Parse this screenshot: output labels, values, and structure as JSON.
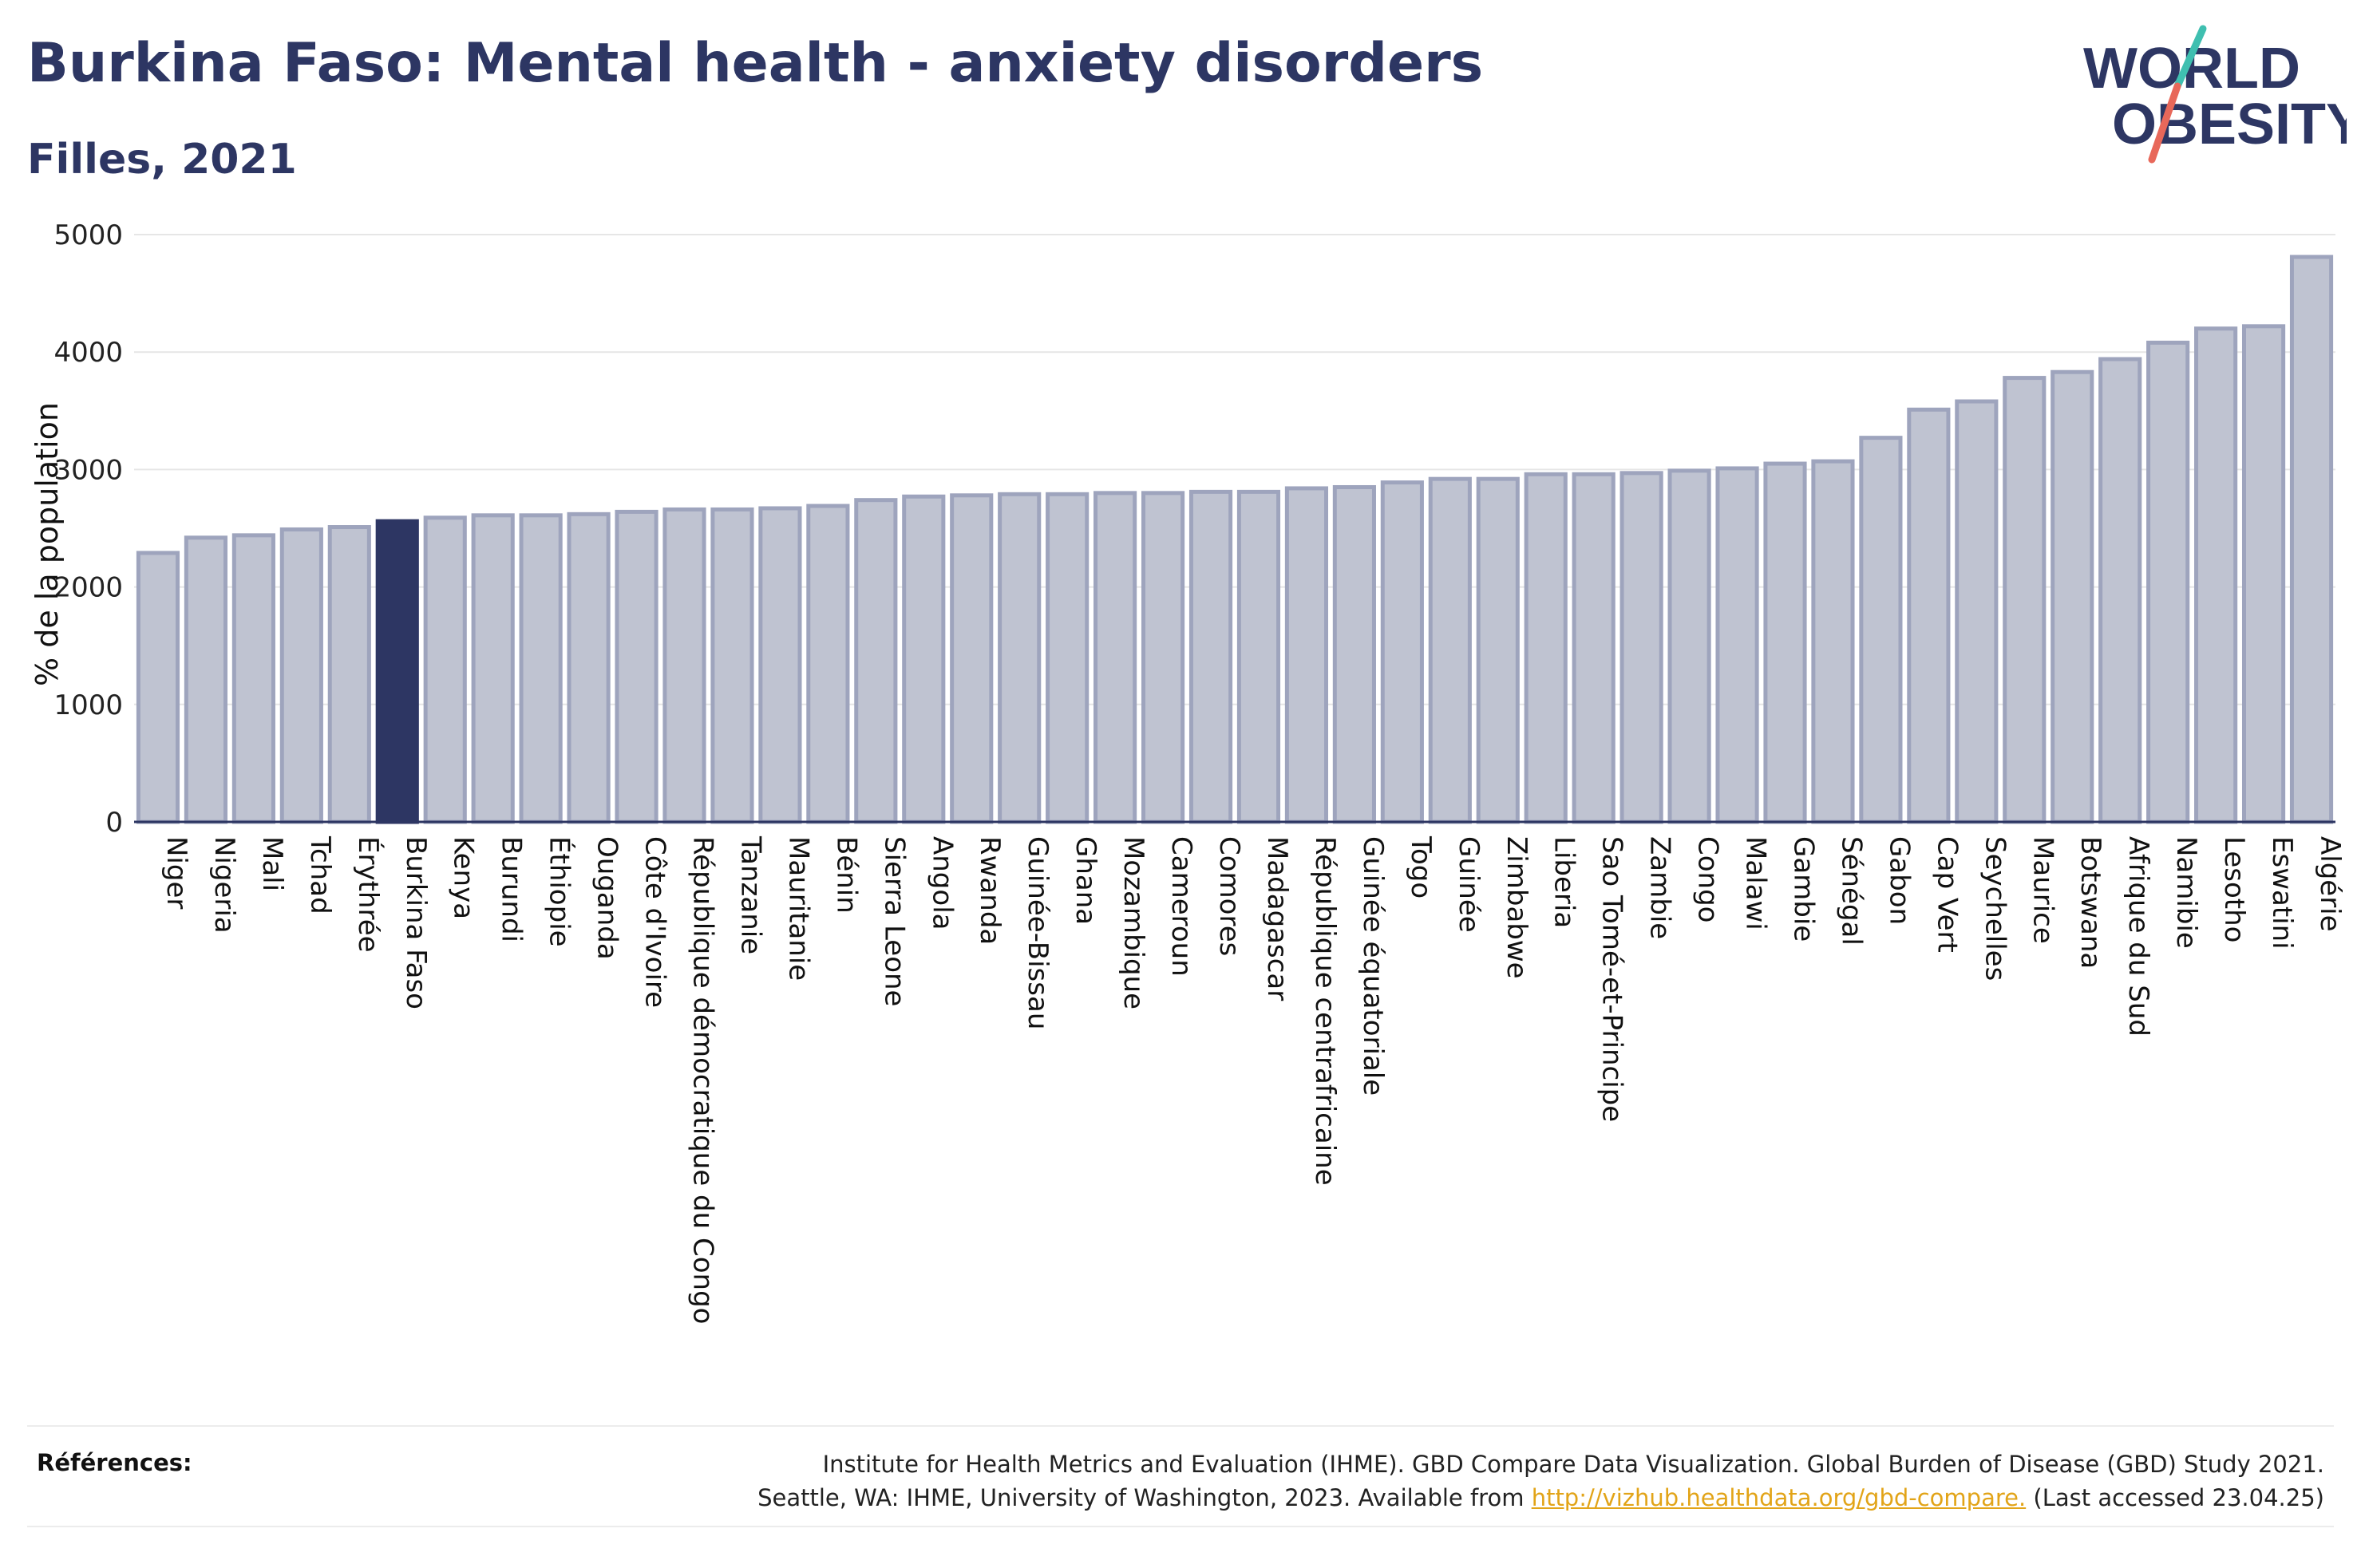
{
  "header": {
    "title": "Burkina Faso: Mental health - anxiety disorders",
    "subtitle": "Filles, 2021"
  },
  "logo": {
    "line1": "WORLD",
    "line2": "OBESITY",
    "colors": {
      "text": "#2d3663",
      "slash_top": "#3fbfb0",
      "slash_bottom": "#e8685a"
    }
  },
  "colors": {
    "highlight": "#2d3663",
    "bar_fill": "#bfc3d1",
    "bar_stroke": "#9ea4bd",
    "grid": "#e6e6e6"
  },
  "chart_data": {
    "type": "bar",
    "title": "Burkina Faso: Mental health - anxiety disorders",
    "subtitle": "Filles, 2021",
    "ylabel": "% de la population",
    "xlabel": "",
    "ylim": [
      0,
      5000
    ],
    "yticks": [
      0,
      1000,
      2000,
      3000,
      4000,
      5000
    ],
    "grid": true,
    "highlight": "Burkina Faso",
    "categories": [
      "Niger",
      "Nigeria",
      "Mali",
      "Tchad",
      "Érythrée",
      "Burkina Faso",
      "Kenya",
      "Burundi",
      "Éthiopie",
      "Ouganda",
      "Côte d'Ivoire",
      "République démocratique du Congo",
      "Tanzanie",
      "Mauritanie",
      "Bénin",
      "Sierra Leone",
      "Angola",
      "Rwanda",
      "Guinée-Bissau",
      "Ghana",
      "Mozambique",
      "Cameroun",
      "Comores",
      "Madagascar",
      "République centrafricaine",
      "Guinée équatoriale",
      "Togo",
      "Guinée",
      "Zimbabwe",
      "Liberia",
      "Sao Tomé-et-Principe",
      "Zambie",
      "Congo",
      "Malawi",
      "Gambie",
      "Sénégal",
      "Gabon",
      "Cap Vert",
      "Seychelles",
      "Maurice",
      "Botswana",
      "Afrique du Sud",
      "Namibie",
      "Lesotho",
      "Eswatini",
      "Algérie"
    ],
    "values": [
      2290,
      2420,
      2440,
      2490,
      2510,
      2560,
      2590,
      2610,
      2610,
      2620,
      2640,
      2660,
      2660,
      2670,
      2690,
      2740,
      2770,
      2780,
      2790,
      2790,
      2800,
      2800,
      2810,
      2810,
      2840,
      2850,
      2890,
      2920,
      2920,
      2960,
      2960,
      2970,
      2990,
      3010,
      3050,
      3070,
      3270,
      3510,
      3580,
      3780,
      3830,
      3940,
      4080,
      4200,
      4220,
      4810
    ]
  },
  "references": {
    "label": "Références:",
    "line1": "Institute for Health Metrics and Evaluation (IHME). GBD Compare Data Visualization. Global Burden of Disease (GBD) Study 2021.",
    "line2_prefix": "Seattle, WA: IHME, University of Washington, 2023. Available from",
    "link": "http://vizhub.healthdata.org/gbd-compare.",
    "line2_suffix": "(Last accessed 23.04.25)"
  }
}
